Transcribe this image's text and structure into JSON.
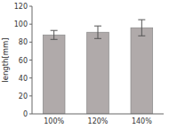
{
  "chart_data": {
    "type": "bar",
    "categories": [
      "100%",
      "120%",
      "140%"
    ],
    "values": [
      88,
      91,
      96
    ],
    "errors": [
      5,
      7,
      9
    ],
    "color": "#b0aaaa",
    "ylabel": "length[mm]",
    "ylim": [
      0,
      120
    ],
    "yticks": [
      0,
      20,
      40,
      60,
      80,
      100,
      120
    ],
    "grid": false
  }
}
